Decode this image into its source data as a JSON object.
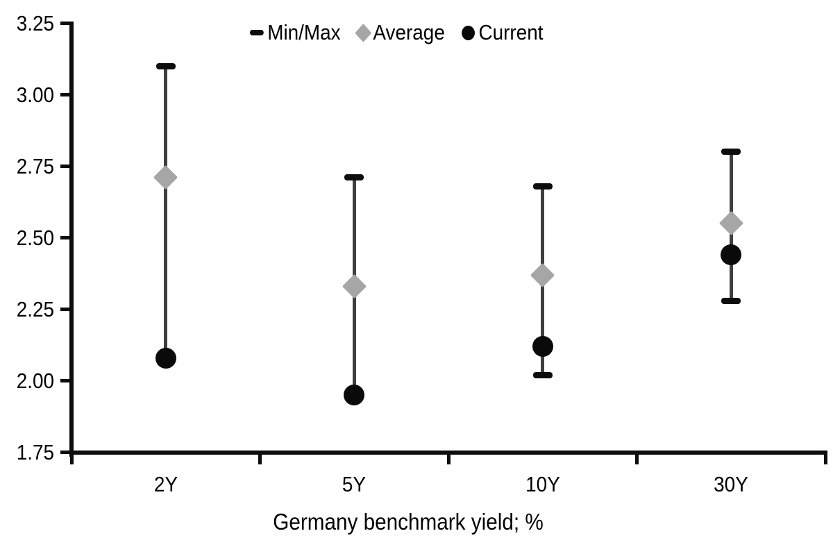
{
  "chart_data": {
    "type": "scatter",
    "subtype": "min-max-range-dot-plot",
    "title": "",
    "xlabel": "Germany benchmark yield; %",
    "ylabel": "",
    "categories": [
      "2Y",
      "5Y",
      "10Y",
      "30Y"
    ],
    "series": [
      {
        "name": "Min/Max",
        "marker": "dash",
        "min": [
          2.08,
          1.95,
          2.02,
          2.28
        ],
        "max": [
          3.1,
          2.71,
          2.68,
          2.8
        ]
      },
      {
        "name": "Average",
        "marker": "diamond",
        "values": [
          2.71,
          2.33,
          2.37,
          2.55
        ]
      },
      {
        "name": "Current",
        "marker": "circle",
        "values": [
          2.08,
          1.95,
          2.12,
          2.44
        ]
      }
    ],
    "ylim": [
      1.75,
      3.25
    ],
    "y_tick_labels": [
      "1.75",
      "2.00",
      "2.25",
      "2.50",
      "2.75",
      "3.00",
      "3.25"
    ],
    "grid": "off",
    "legend_position": "top",
    "colors": {
      "min_max": "#0d0d0d",
      "average": "#a6a6a6",
      "current": "#0a0a0a",
      "range_line": "#3f3f3f",
      "axis": "#0d0d0d",
      "text": "#000000",
      "background": "#ffffff"
    }
  }
}
